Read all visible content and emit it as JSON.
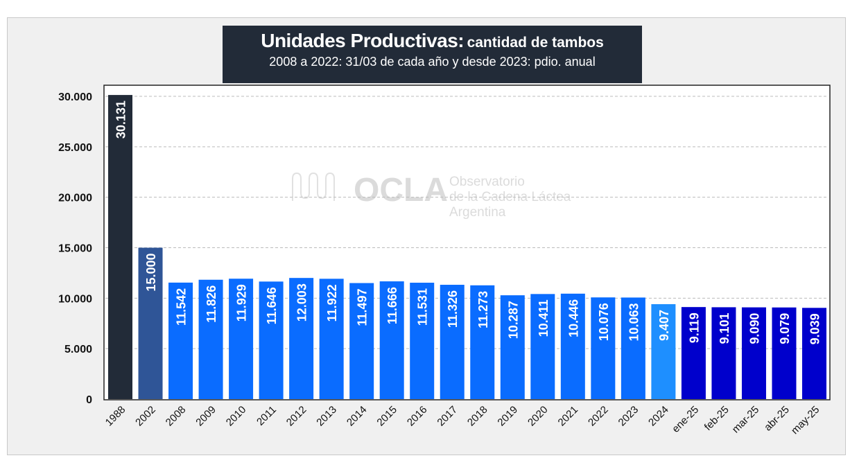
{
  "chart_data": {
    "type": "bar",
    "title": "Unidades Productivas:",
    "title_suffix": "cantidad de tambos",
    "subtitle": "2008 a 2022: 31/03 de cada año y desde 2023: pdio. anual",
    "categories": [
      "1988",
      "2002",
      "2008",
      "2009",
      "2010",
      "2011",
      "2012",
      "2013",
      "2014",
      "2015",
      "2016",
      "2017",
      "2018",
      "2019",
      "2020",
      "2021",
      "2022",
      "2023",
      "2024",
      "ene-25",
      "feb-25",
      "mar-25",
      "abr-25",
      "may-25"
    ],
    "values": [
      30131,
      15000,
      11542,
      11826,
      11929,
      11646,
      12003,
      11922,
      11497,
      11666,
      11531,
      11326,
      11273,
      10287,
      10411,
      10446,
      10076,
      10063,
      9407,
      9119,
      9101,
      9090,
      9079,
      9039
    ],
    "data_labels": [
      "30.131",
      "15.000",
      "11.542",
      "11.826",
      "11.929",
      "11.646",
      "12.003",
      "11.922",
      "11.497",
      "11.666",
      "11.531",
      "11.326",
      "11.273",
      "10.287",
      "10.411",
      "10.446",
      "10.076",
      "10.063",
      "9.407",
      "9.119",
      "9.101",
      "9.090",
      "9.079",
      "9.039"
    ],
    "ylim": [
      0,
      30000
    ],
    "yticks": [
      0,
      5000,
      10000,
      15000,
      20000,
      25000,
      30000
    ],
    "ytick_labels": [
      "0",
      "5.000",
      "10.000",
      "15.000",
      "20.000",
      "25.000",
      "30.000"
    ],
    "grid": "horizontal dashed",
    "xlabel": "",
    "ylabel": "",
    "colors": {
      "1988": "#222b38",
      "2002": "#2f5597",
      "annual": "#0a6cff",
      "2024": "#1e8fff",
      "monthly_2025": "#0000cc"
    }
  },
  "watermark": {
    "logo": "OCLA",
    "line1": "Observatorio",
    "line2": "de la Cadena Láctea",
    "line3": "Argentina"
  }
}
